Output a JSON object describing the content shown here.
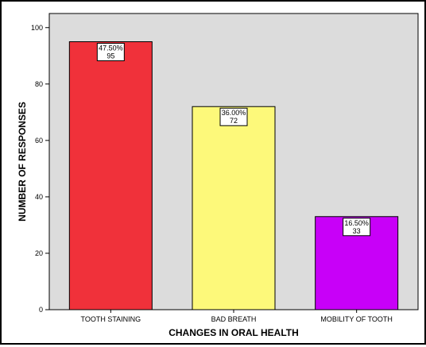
{
  "chart_data": {
    "type": "bar",
    "title": "",
    "xlabel": "CHANGES IN ORAL HEALTH",
    "ylabel": "NUMBER OF RESPONSES",
    "ylim": [
      0,
      100
    ],
    "yticks": [
      0,
      20,
      40,
      60,
      80,
      100
    ],
    "ytick_labels": [
      "0",
      "20",
      "40",
      "60",
      "80",
      "100"
    ],
    "grid": false,
    "categories": [
      "TOOTH STAINING",
      "BAD BREATH",
      "MOBILITY OF TOOTH"
    ],
    "values": [
      95,
      72,
      33
    ],
    "percent_labels": [
      "47.50%",
      "36.00%",
      "16.50%"
    ],
    "count_labels": [
      "95",
      "72",
      "33"
    ],
    "colors": [
      "#f0313a",
      "#fdf97a",
      "#c800f8"
    ],
    "plot_background": "#dcdcdc"
  }
}
